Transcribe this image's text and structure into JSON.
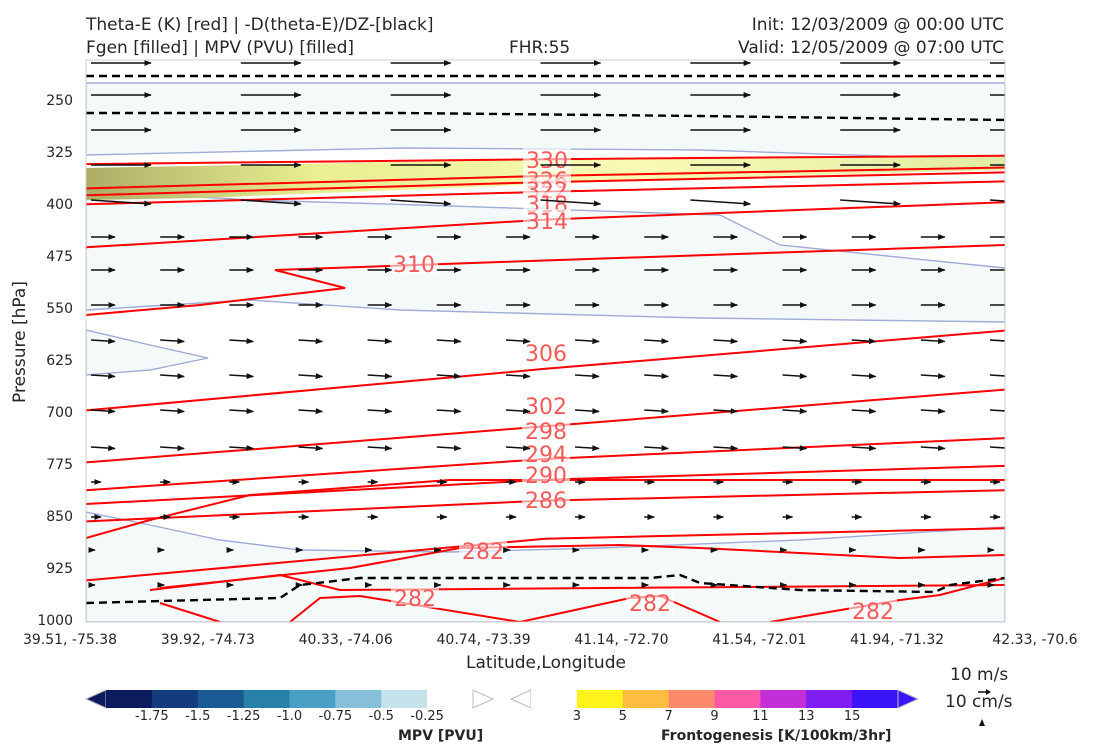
{
  "header": {
    "title_left_1": "Theta-E (K) [red] | -D(theta-E)/DZ-[black]",
    "title_left_2": "Fgen [filled] | MPV (PVU) [filled]",
    "title_center": "FHR:55",
    "title_right_1": "Init: 12/03/2009 @ 00:00 UTC",
    "title_right_2": "Valid: 12/05/2009 @ 07:00 UTC"
  },
  "chart_data": {
    "type": "cross-section",
    "ylabel": "Pressure [hPa]",
    "xlabel": "Latitude,Longitude",
    "y_ticks": [
      "250",
      "325",
      "400",
      "475",
      "550",
      "625",
      "700",
      "775",
      "850",
      "925",
      "1000"
    ],
    "y_values": [
      250,
      325,
      400,
      475,
      550,
      625,
      700,
      775,
      850,
      925,
      1000
    ],
    "ylim": [
      1000,
      190
    ],
    "y_inverted": true,
    "x_ticks": [
      "39.51, -75.38",
      "39.92, -74.73",
      "40.33, -74.06",
      "40.74, -73.39",
      "41.14, -72.70",
      "41.54, -72.01",
      "41.94, -71.32",
      "42.33, -70.6"
    ],
    "theta_e_contour_labels": [
      "330",
      "326",
      "322",
      "318",
      "314",
      "310",
      "306",
      "302",
      "298",
      "294",
      "290",
      "286",
      "282",
      "282",
      "282",
      "282"
    ],
    "theta_e_contours": [
      {
        "level": 330,
        "pressure": [
          340,
          333,
          328
        ]
      },
      {
        "level": 326,
        "pressure": [
          375,
          357,
          345
        ]
      },
      {
        "level": 322,
        "pressure": [
          385,
          366,
          352
        ]
      },
      {
        "level": 318,
        "pressure": [
          398,
          380,
          365
        ]
      },
      {
        "level": 314,
        "pressure": [
          460,
          420,
          395
        ]
      },
      {
        "level": 306,
        "pressure": [
          695,
          635,
          580
        ]
      },
      {
        "level": 302,
        "pressure": [
          770,
          718,
          665
        ]
      },
      {
        "level": 298,
        "pressure": [
          810,
          765,
          735
        ]
      },
      {
        "level": 294,
        "pressure": [
          830,
          795,
          775
        ]
      },
      {
        "level": 290,
        "pressure": [
          855,
          825,
          810
        ]
      },
      {
        "level": 286,
        "pressure": [
          940,
          880,
          865
        ]
      }
    ],
    "quiver_key": {
      "horizontal": "10 m/s",
      "vertical": "10 cm/s"
    },
    "colorbars": [
      {
        "label": "MPV [PVU]",
        "ticks": [
          "-1.75",
          "-1.5",
          "-1.25",
          "-1.0",
          "-0.75",
          "-0.5",
          "-0.25"
        ],
        "colors": [
          "#0c1a5e",
          "#123c7d",
          "#1a5b94",
          "#2780a8",
          "#4aa0c4",
          "#86c0d8",
          "#c6e3ec",
          "#ffffff"
        ]
      },
      {
        "label": "Frontogenesis [K/100km/3hr]",
        "ticks": [
          "3",
          "5",
          "7",
          "9",
          "11",
          "13",
          "15"
        ],
        "colors": [
          "#ffffff",
          "#fff31c",
          "#fdbd40",
          "#fd8a6c",
          "#fb59a6",
          "#c32ed8",
          "#7e1cf2",
          "#3b14f7"
        ]
      }
    ],
    "grid": false,
    "colors": {
      "theta_e": "#ff0000",
      "label": "#f55a5a",
      "dthetae": "#000000",
      "mpv_fill": "#f4f9fa",
      "mpv_line": "#a0acd6"
    }
  }
}
